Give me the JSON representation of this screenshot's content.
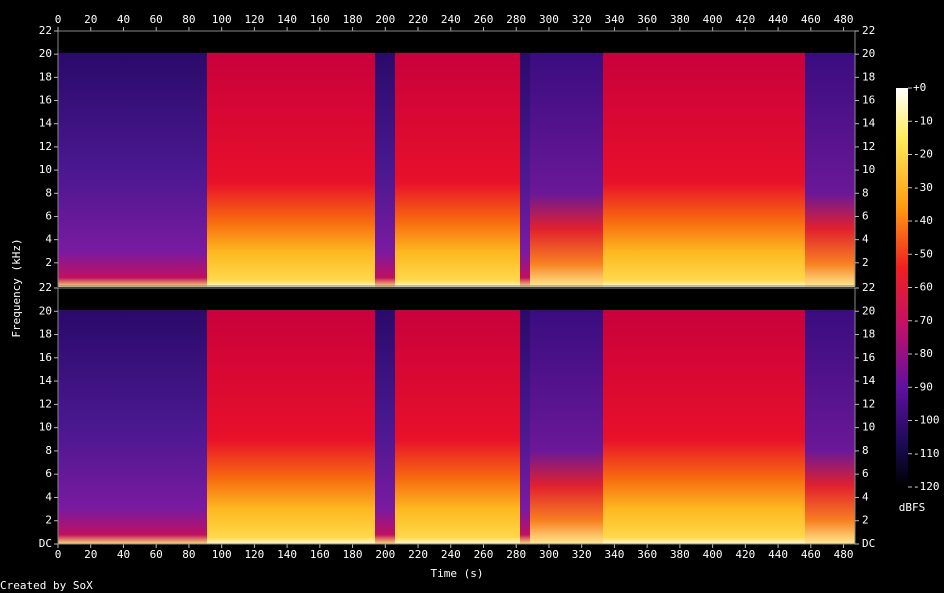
{
  "chart_data": {
    "type": "spectrogram",
    "xlabel": "Time (s)",
    "ylabel": "Frequency (kHz)",
    "xlim": [
      0,
      487
    ],
    "xticks": [
      0,
      20,
      40,
      60,
      80,
      100,
      120,
      140,
      160,
      180,
      200,
      220,
      240,
      260,
      280,
      300,
      320,
      340,
      360,
      380,
      400,
      420,
      440,
      460,
      480
    ],
    "channels": [
      {
        "ylim": [
          0,
          22
        ],
        "yticks": [
          2,
          4,
          6,
          8,
          10,
          12,
          14,
          16,
          18,
          20,
          22
        ]
      },
      {
        "ylim": [
          0,
          22
        ],
        "yticks": [
          {
            "value": 0,
            "label": "DC"
          },
          2,
          4,
          6,
          8,
          10,
          12,
          14,
          16,
          18,
          20,
          22
        ]
      }
    ],
    "colorbar": {
      "label": "dBFS",
      "lim": [
        -120,
        0
      ],
      "ticks": [
        {
          "value": 0,
          "label": "+0"
        },
        -10,
        -20,
        -30,
        -40,
        -50,
        -60,
        -70,
        -80,
        -90,
        -100,
        -110,
        -120
      ]
    },
    "credit": "Created by SoX"
  }
}
